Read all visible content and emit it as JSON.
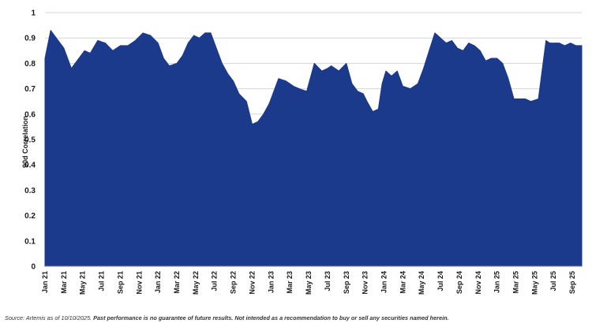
{
  "chart_data": {
    "type": "area",
    "ylabel": "90d Correlation",
    "ylim": [
      0,
      1
    ],
    "y_ticks": [
      "0",
      "0.1",
      "0.2",
      "0.3",
      "0.4",
      "0.5",
      "0.6",
      "0.7",
      "0.8",
      "0.9",
      "1"
    ],
    "x_ticks": [
      "Jan 21",
      "Mar 21",
      "May 21",
      "Jul 21",
      "Sep 21",
      "Nov 21",
      "Jan 22",
      "Mar 22",
      "May 22",
      "Jul 22",
      "Sep 22",
      "Nov 22",
      "Jan 23",
      "Mar 23",
      "May 23",
      "Jul 23",
      "Sep 23",
      "Nov 23",
      "Jan 24",
      "Mar 24",
      "May 24",
      "Jul 24",
      "Sep 24",
      "Nov 24",
      "Jan 25",
      "Mar 25",
      "May 25",
      "Jul 25",
      "Sep 25"
    ],
    "grid": "horizontal",
    "fill_color": "#1b3a8c",
    "series": [
      {
        "x": [
          0,
          0.3,
          0.6,
          1.0,
          1.4,
          1.8,
          2.1,
          2.4,
          2.8,
          3.2,
          3.6,
          4.0,
          4.4,
          4.8,
          5.2,
          5.6,
          6.0,
          6.3,
          6.6,
          7.0,
          7.3,
          7.6,
          7.9,
          8.2,
          8.5,
          8.8,
          9.1,
          9.4,
          9.7,
          10.0,
          10.3,
          10.7,
          11.0,
          11.3,
          11.6,
          11.9,
          12.1,
          12.4,
          12.8,
          13.2,
          13.5,
          13.9,
          14.3,
          14.7,
          15.0,
          15.2,
          15.6,
          16.0,
          16.3,
          16.6,
          16.9,
          17.1,
          17.4,
          17.7,
          17.9,
          18.1,
          18.4,
          18.7,
          19.0,
          19.4,
          19.8,
          20.1,
          20.4,
          20.7,
          21.0,
          21.3,
          21.6,
          21.9,
          22.2,
          22.5,
          22.8,
          23.1,
          23.4,
          23.7,
          24.0,
          24.3,
          24.6,
          24.9,
          25.2,
          25.5,
          25.8,
          26.2,
          26.6,
          26.8,
          27.0,
          27.3,
          27.6,
          27.9,
          28.2,
          28.5
        ],
        "values": [
          0.82,
          0.93,
          0.9,
          0.86,
          0.78,
          0.82,
          0.85,
          0.84,
          0.89,
          0.88,
          0.85,
          0.87,
          0.87,
          0.89,
          0.92,
          0.91,
          0.88,
          0.82,
          0.79,
          0.8,
          0.83,
          0.88,
          0.91,
          0.9,
          0.92,
          0.92,
          0.86,
          0.8,
          0.76,
          0.73,
          0.68,
          0.65,
          0.56,
          0.57,
          0.6,
          0.64,
          0.68,
          0.74,
          0.73,
          0.71,
          0.7,
          0.69,
          0.8,
          0.77,
          0.78,
          0.79,
          0.77,
          0.8,
          0.72,
          0.69,
          0.68,
          0.65,
          0.61,
          0.62,
          0.72,
          0.77,
          0.75,
          0.77,
          0.71,
          0.7,
          0.72,
          0.78,
          0.85,
          0.92,
          0.9,
          0.88,
          0.89,
          0.86,
          0.85,
          0.88,
          0.87,
          0.85,
          0.81,
          0.82,
          0.82,
          0.8,
          0.74,
          0.66,
          0.66,
          0.66,
          0.65,
          0.66,
          0.89,
          0.88,
          0.88,
          0.88,
          0.87,
          0.88,
          0.87,
          0.87
        ]
      }
    ]
  },
  "footnote": {
    "source": "Source: Artemis as of 10/10/2025.",
    "disclaimer": "Past performance is no guarantee of future results. Not intended as a recommendation to buy or sell any securities named herein."
  }
}
